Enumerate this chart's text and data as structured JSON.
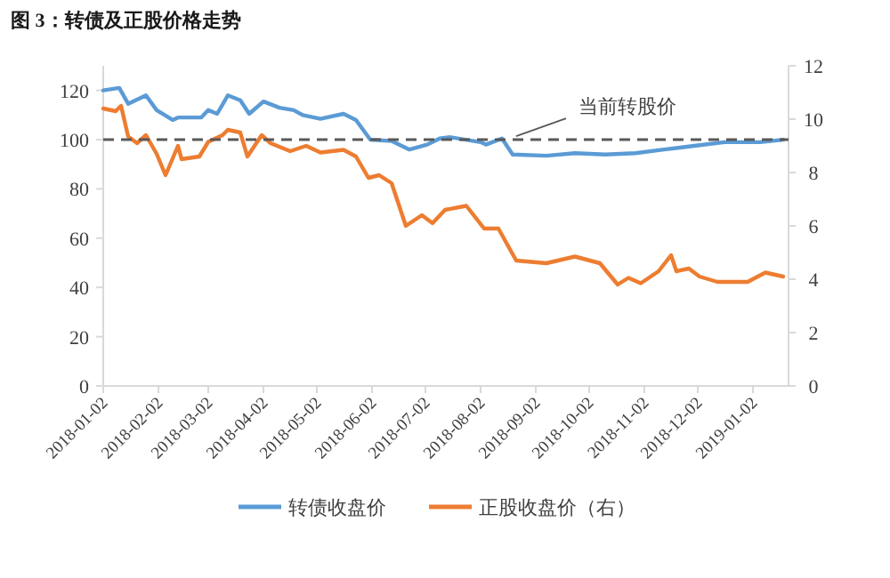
{
  "chart_data": {
    "type": "line",
    "title": "图 3：转债及正股价格走势",
    "xlim": [
      "2018-01-02",
      "2019-01-22"
    ],
    "xticks": [
      "2018-01-02",
      "2018-02-02",
      "2018-03-02",
      "2018-04-02",
      "2018-05-02",
      "2018-06-02",
      "2018-07-02",
      "2018-08-02",
      "2018-09-02",
      "2018-10-02",
      "2018-11-02",
      "2018-12-02",
      "2019-01-02"
    ],
    "ylim": [
      0,
      130
    ],
    "yticks": [
      0,
      20,
      40,
      60,
      80,
      100,
      120
    ],
    "y2lim": [
      0,
      12
    ],
    "y2ticks": [
      0,
      2,
      4,
      6,
      8,
      10,
      12
    ],
    "grid": false,
    "legend": "bottom",
    "line_style": "solid",
    "marker": "none",
    "ref_lines": [
      {
        "axis": "y",
        "value": 100,
        "label": "当前转股价",
        "color": "#595959",
        "line_style": "dashed"
      }
    ],
    "series": [
      {
        "name": "转债收盘价",
        "color": "#5b9bd5",
        "x": [
          "2018-01-02",
          "2018-01-11",
          "2018-01-16",
          "2018-01-26",
          "2018-02-01",
          "2018-02-10",
          "2018-02-13",
          "2018-02-26",
          "2018-03-02",
          "2018-03-07",
          "2018-03-13",
          "2018-03-20",
          "2018-03-25",
          "2018-04-02",
          "2018-04-11",
          "2018-04-19",
          "2018-04-24",
          "2018-05-04",
          "2018-05-17",
          "2018-05-24",
          "2018-06-01",
          "2018-06-13",
          "2018-06-23",
          "2018-07-03",
          "2018-07-10",
          "2018-07-16",
          "2018-08-02",
          "2018-08-05",
          "2018-08-14",
          "2018-08-20",
          "2018-09-08",
          "2018-09-24",
          "2018-10-11",
          "2018-10-28",
          "2018-11-13",
          "2018-11-30",
          "2018-12-17",
          "2019-01-06",
          "2019-01-19"
        ],
        "values": [
          120,
          121,
          114.6,
          118,
          112,
          108,
          109,
          109,
          112,
          110.5,
          118,
          116,
          110.5,
          115.5,
          113,
          112,
          110,
          108.5,
          110.5,
          108,
          100,
          99.5,
          96,
          98,
          100.5,
          101,
          99,
          98,
          100.5,
          94,
          93.5,
          94.5,
          94,
          94.5,
          96,
          97.5,
          99,
          99,
          100
        ]
      },
      {
        "name": "正股收盘价（右）",
        "color": "#ed7d31",
        "axis": "y2",
        "x": [
          "2018-01-02",
          "2018-01-09",
          "2018-01-12",
          "2018-01-16",
          "2018-01-21",
          "2018-01-26",
          "2018-02-01",
          "2018-02-06",
          "2018-02-13",
          "2018-02-15",
          "2018-02-25",
          "2018-03-02",
          "2018-03-10",
          "2018-03-13",
          "2018-03-20",
          "2018-03-24",
          "2018-04-01",
          "2018-04-06",
          "2018-04-17",
          "2018-04-26",
          "2018-05-04",
          "2018-05-17",
          "2018-05-24",
          "2018-05-31",
          "2018-06-06",
          "2018-06-13",
          "2018-06-21",
          "2018-06-30",
          "2018-07-06",
          "2018-07-13",
          "2018-07-25",
          "2018-08-04",
          "2018-08-12",
          "2018-08-22",
          "2018-09-08",
          "2018-09-24",
          "2018-10-08",
          "2018-10-18",
          "2018-10-24",
          "2018-10-31",
          "2018-11-10",
          "2018-11-17",
          "2018-11-20",
          "2018-11-27",
          "2018-12-03",
          "2018-12-13",
          "2018-12-30",
          "2019-01-09",
          "2019-01-19"
        ],
        "values": [
          10.4,
          10.3,
          10.5,
          9.35,
          9.1,
          9.4,
          8.7,
          7.9,
          9.0,
          8.5,
          8.6,
          9.15,
          9.4,
          9.6,
          9.5,
          8.6,
          9.4,
          9.1,
          8.8,
          9.0,
          8.75,
          8.85,
          8.6,
          7.8,
          7.9,
          7.6,
          6.0,
          6.4,
          6.1,
          6.6,
          6.75,
          5.9,
          5.9,
          4.7,
          4.6,
          4.85,
          4.6,
          3.8,
          4.05,
          3.85,
          4.3,
          4.9,
          4.3,
          4.4,
          4.1,
          3.9,
          3.9,
          4.25,
          4.1
        ]
      }
    ]
  }
}
